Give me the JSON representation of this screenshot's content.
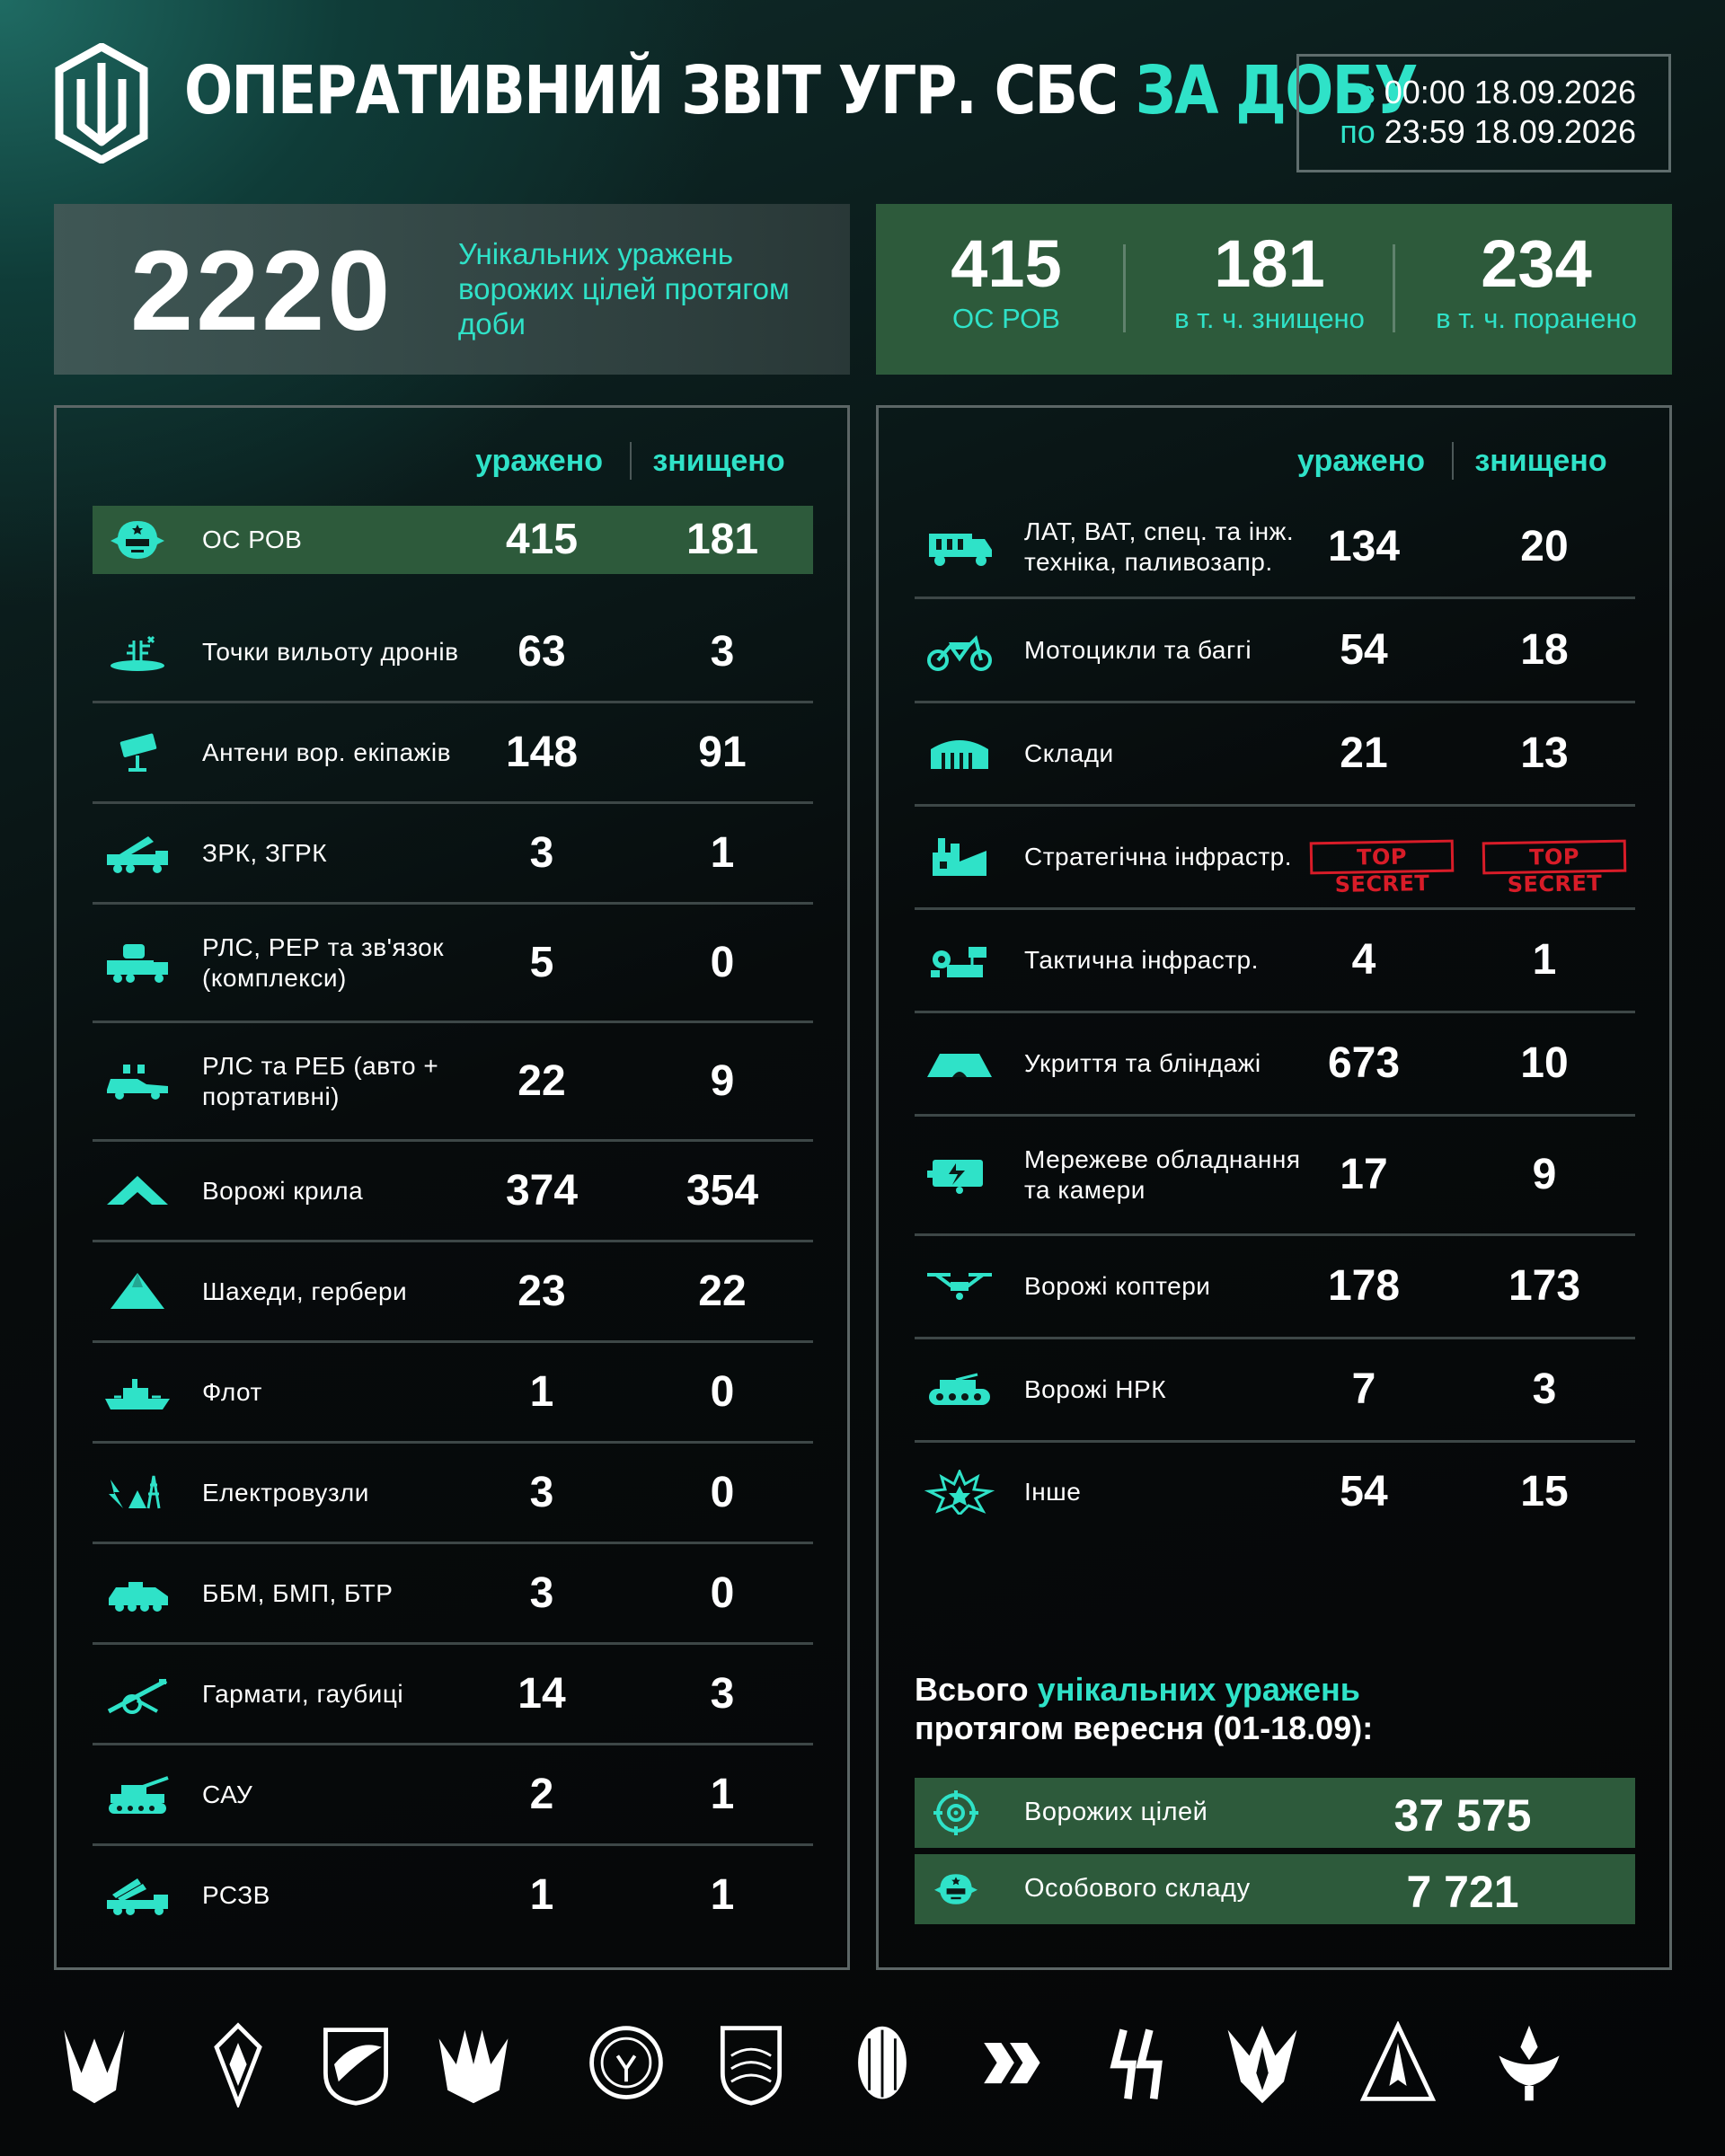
{
  "header": {
    "title_main": "ОПЕРАТИВНИЙ ЗВІТ УГР. СБС",
    "title_accent": "ЗА ДОБУ",
    "from_prefix": "з",
    "from_time": "00:00 18.09.2026",
    "to_prefix": "по",
    "to_time": "23:59 18.09.2026"
  },
  "summary": {
    "total": "2220",
    "total_desc": "Унікальних уражень ворожих цілей протягом доби",
    "stats": [
      {
        "value": "415",
        "label": "ОС РОВ"
      },
      {
        "value": "181",
        "label": "в т. ч. знищено"
      },
      {
        "value": "234",
        "label": "в т. ч. поранено"
      }
    ]
  },
  "columns": {
    "hit": "уражено",
    "destroyed": "знищено"
  },
  "left_rows": [
    {
      "label": "ОС РОВ",
      "hit": "415",
      "destroyed": "181",
      "icon": "soldier-helmet-icon"
    },
    {
      "label": "Точки вильоту дронів",
      "hit": "63",
      "destroyed": "3",
      "icon": "drone-launch-point-icon"
    },
    {
      "label": "Антени вор. екіпажів",
      "hit": "148",
      "destroyed": "91",
      "icon": "antenna-icon"
    },
    {
      "label": "ЗРК, ЗГРК",
      "hit": "3",
      "destroyed": "1",
      "icon": "air-defense-truck-icon"
    },
    {
      "label": "РЛС, РЕР та зв'язок (комплекси)",
      "hit": "5",
      "destroyed": "0",
      "icon": "radar-truck-icon"
    },
    {
      "label": "РЛС та РЕБ (авто + портативні)",
      "hit": "22",
      "destroyed": "9",
      "icon": "ew-car-icon"
    },
    {
      "label": "Ворожі крила",
      "hit": "374",
      "destroyed": "354",
      "icon": "fixed-wing-drone-icon"
    },
    {
      "label": "Шахеди, гербери",
      "hit": "23",
      "destroyed": "22",
      "icon": "shahed-drone-icon"
    },
    {
      "label": "Флот",
      "hit": "1",
      "destroyed": "0",
      "icon": "ship-icon"
    },
    {
      "label": "Електровузли",
      "hit": "3",
      "destroyed": "0",
      "icon": "power-node-icon"
    },
    {
      "label": "ББМ, БМП, БТР",
      "hit": "3",
      "destroyed": "0",
      "icon": "apc-icon"
    },
    {
      "label": "Гармати, гаубиці",
      "hit": "14",
      "destroyed": "3",
      "icon": "howitzer-icon"
    },
    {
      "label": "САУ",
      "hit": "2",
      "destroyed": "1",
      "icon": "self-propelled-gun-icon"
    },
    {
      "label": "РСЗВ",
      "hit": "1",
      "destroyed": "1",
      "icon": "mlrs-icon"
    }
  ],
  "right_rows": [
    {
      "label": "ЛАТ, ВАТ, спец. та інж. техніка, паливозапр.",
      "hit": "134",
      "destroyed": "20",
      "icon": "truck-icon"
    },
    {
      "label": "Мотоцикли та баггі",
      "hit": "54",
      "destroyed": "18",
      "icon": "motorcycle-icon"
    },
    {
      "label": "Склади",
      "hit": "21",
      "destroyed": "13",
      "icon": "warehouse-icon"
    },
    {
      "label": "Стратегічна інфрастр.",
      "hit": "TOP SECRET",
      "destroyed": "TOP SECRET",
      "icon": "factory-icon",
      "secret": true
    },
    {
      "label": "Тактична інфрастр.",
      "hit": "4",
      "destroyed": "1",
      "icon": "tactical-infrastructure-icon"
    },
    {
      "label": "Укриття та бліндажі",
      "hit": "673",
      "destroyed": "10",
      "icon": "bunker-icon"
    },
    {
      "label": "Мережеве обладнання та камери",
      "hit": "17",
      "destroyed": "9",
      "icon": "network-equipment-icon"
    },
    {
      "label": "Ворожі коптери",
      "hit": "178",
      "destroyed": "173",
      "icon": "quadcopter-icon"
    },
    {
      "label": "Ворожі НРК",
      "hit": "7",
      "destroyed": "3",
      "icon": "ground-robot-icon"
    },
    {
      "label": "Інше",
      "hit": "54",
      "destroyed": "15",
      "icon": "explosion-icon"
    }
  ],
  "month": {
    "title_prefix": "Всього",
    "title_accent": "унікальних уражень",
    "title_suffix": "протягом вересня (01-18.09):",
    "rows": [
      {
        "label": "Ворожих цілей",
        "value": "37 575",
        "icon": "target-icon"
      },
      {
        "label": "Особового складу",
        "value": "7 721",
        "icon": "soldier-helmet-icon"
      }
    ]
  },
  "colors": {
    "accent": "#2fe2c8",
    "highlight_green": "#2d5a3b",
    "secret_red": "#d81c28",
    "background": "#070b0c"
  },
  "footer_icons": [
    "unit-emblem-1-icon",
    "unit-emblem-2-icon",
    "unit-emblem-3-icon",
    "unit-emblem-4-icon",
    "unit-emblem-5-icon",
    "unit-emblem-6-icon",
    "unit-emblem-7-icon",
    "unit-emblem-8-icon",
    "unit-emblem-9-icon",
    "unit-emblem-10-icon",
    "unit-emblem-11-icon",
    "unit-emblem-12-icon"
  ]
}
